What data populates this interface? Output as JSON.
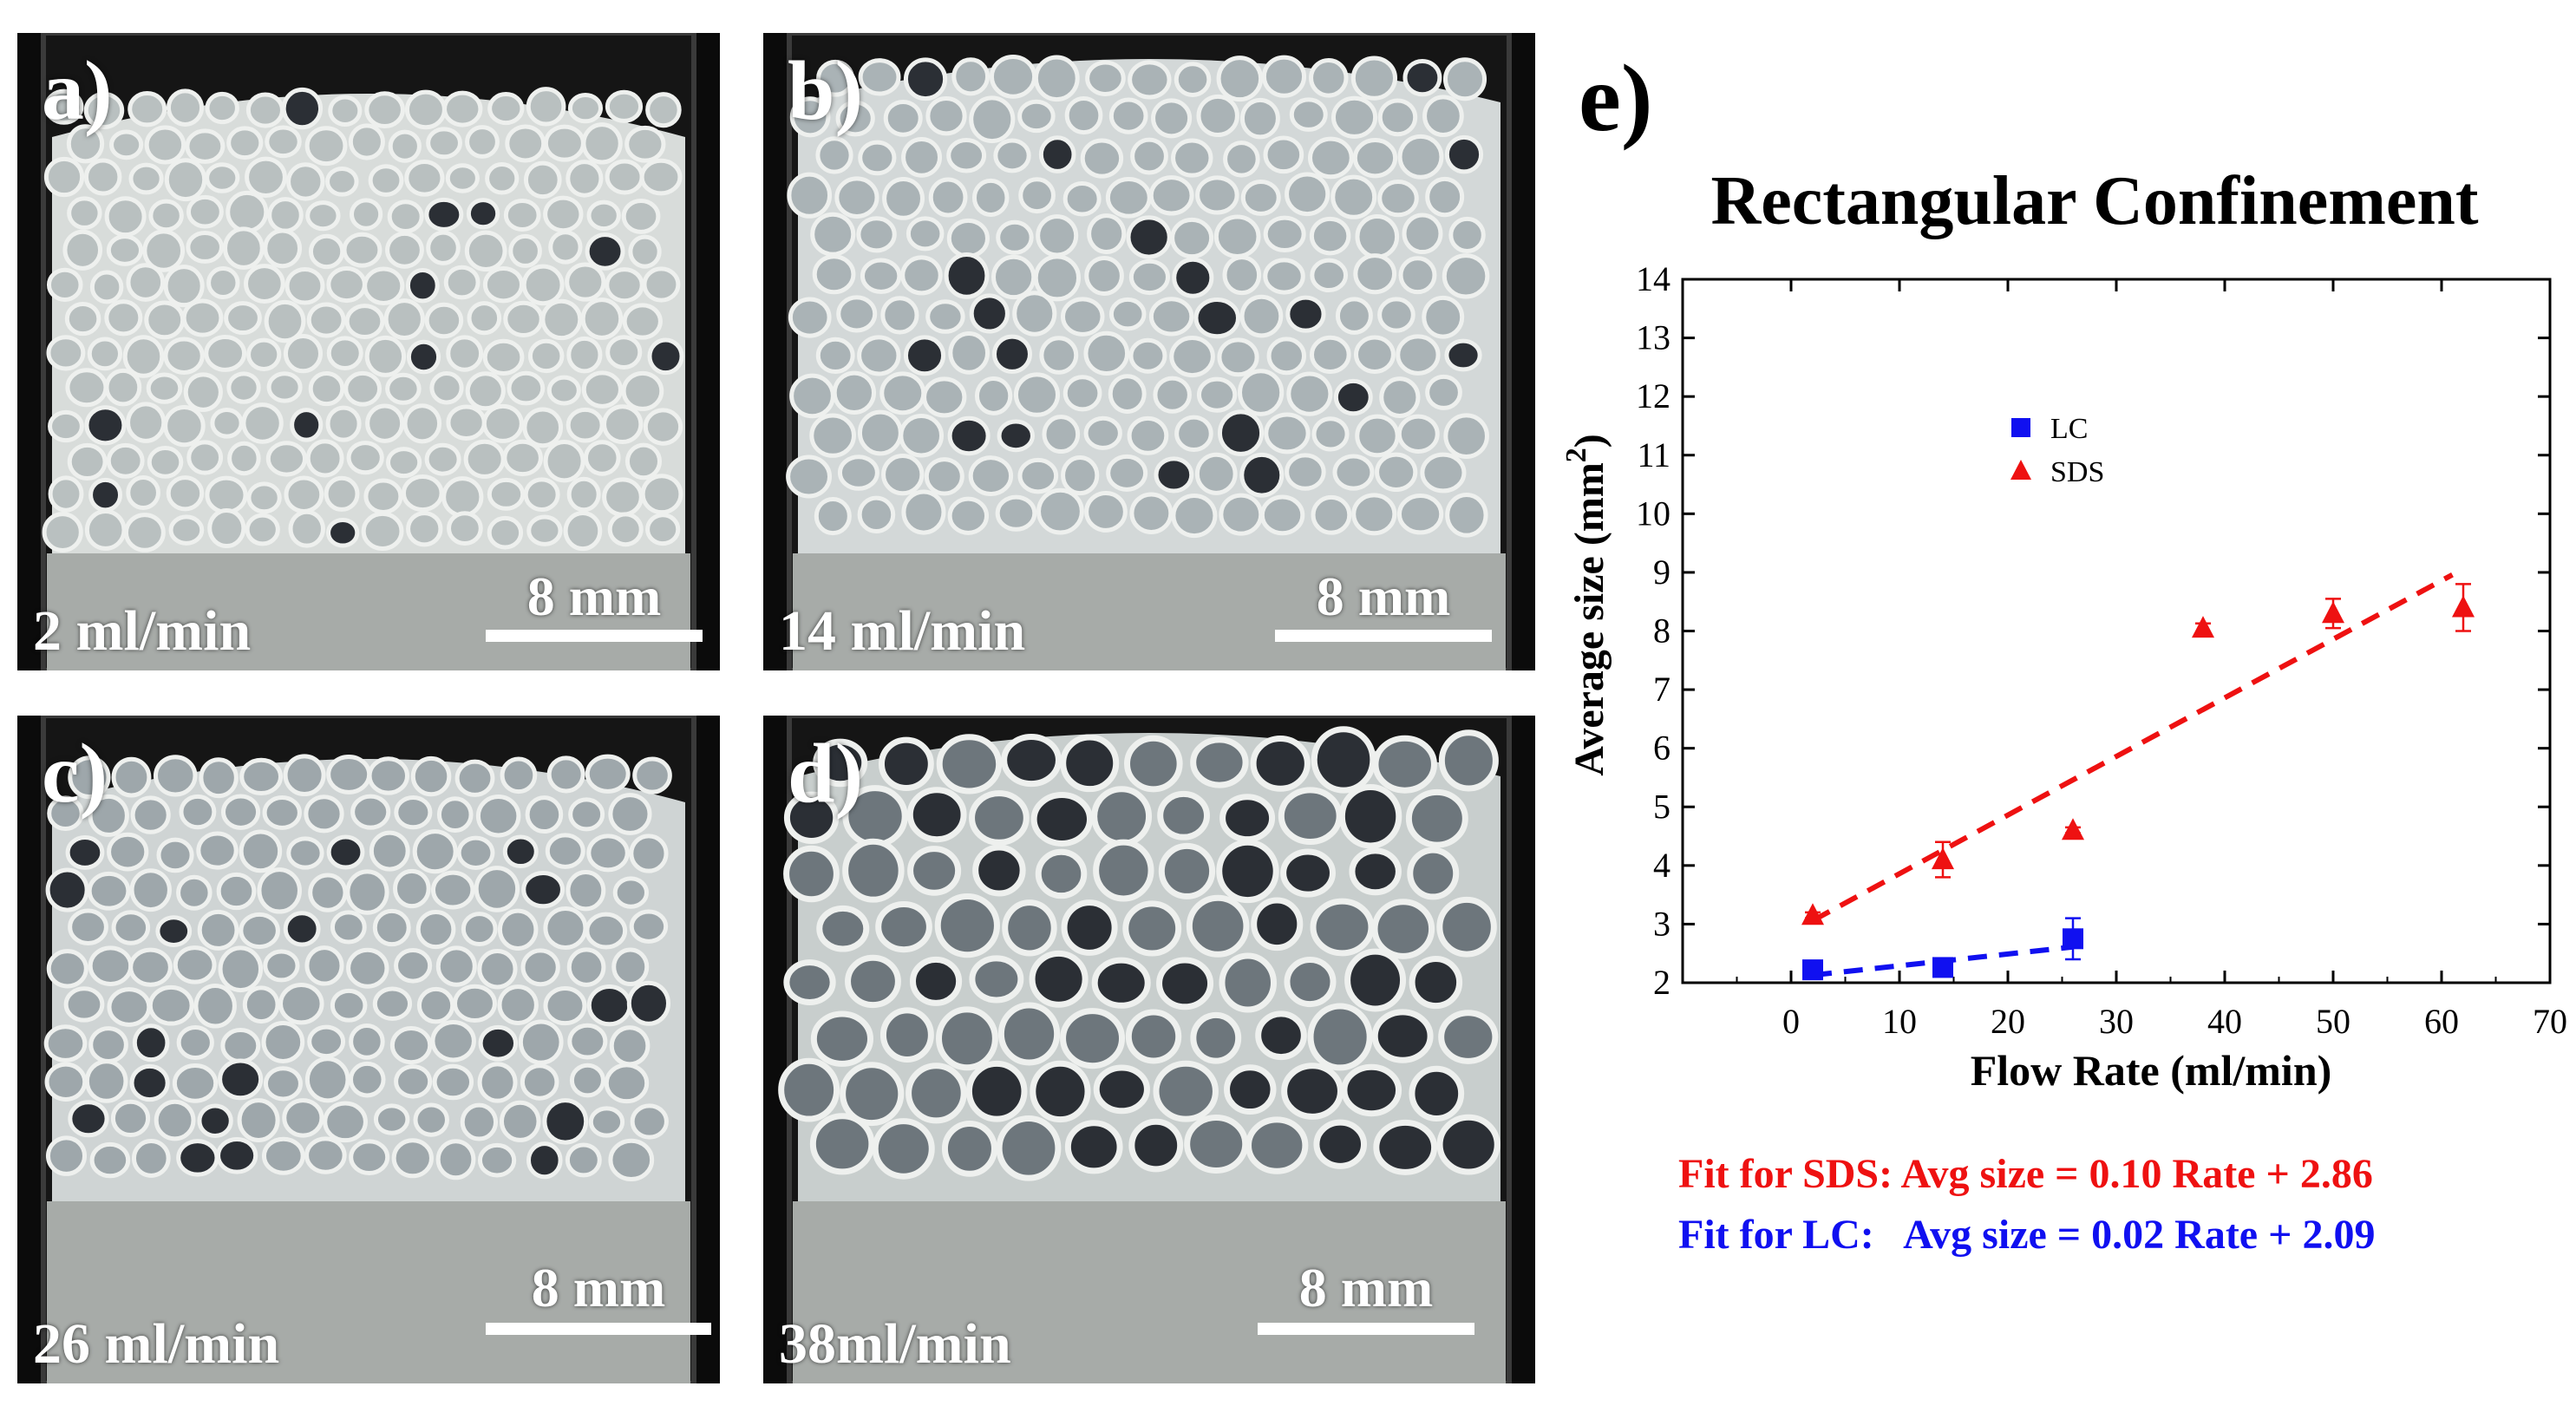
{
  "panels": [
    {
      "letter": "a)",
      "flow": "2 ml/min",
      "scale": "8 mm"
    },
    {
      "letter": "b)",
      "flow": "14 ml/min",
      "scale": "8 mm"
    },
    {
      "letter": "c)",
      "flow": "26 ml/min",
      "scale": "8 mm"
    },
    {
      "letter": "d)",
      "flow": "38ml/min",
      "scale": "8 mm"
    }
  ],
  "chart_panel_letter": "e)",
  "chart_data": {
    "type": "scatter",
    "title": "Rectangular Confinement",
    "xlabel": "Flow Rate (ml/min)",
    "ylabel": "Average size (mm",
    "ylabel_sup": "2",
    "ylabel_close": ")",
    "xlim": [
      -10,
      70
    ],
    "ylim": [
      2,
      14
    ],
    "xticks": [
      0,
      10,
      20,
      30,
      40,
      50,
      60,
      70
    ],
    "yticks": [
      2,
      3,
      4,
      5,
      6,
      7,
      8,
      9,
      10,
      11,
      12,
      13,
      14
    ],
    "legend_position": "upper-middle",
    "series": [
      {
        "name": "LC",
        "color": "#1010f0",
        "marker": "square",
        "x": [
          2,
          14,
          26
        ],
        "y": [
          2.22,
          2.26,
          2.75
        ],
        "err": [
          0.05,
          0.05,
          0.35
        ],
        "fit": {
          "slope": 0.02,
          "intercept": 2.09,
          "x_range": [
            2,
            26
          ]
        }
      },
      {
        "name": "SDS",
        "color": "#ee1111",
        "marker": "triangle",
        "x": [
          2,
          14,
          26,
          38,
          50,
          62
        ],
        "y": [
          3.15,
          4.1,
          4.6,
          8.05,
          8.3,
          8.4
        ],
        "err": [
          0.05,
          0.3,
          0.05,
          0.08,
          0.25,
          0.4
        ],
        "fit": {
          "slope": 0.1,
          "intercept": 2.86,
          "x_range": [
            2,
            61
          ]
        }
      }
    ]
  },
  "fits": {
    "sds": {
      "text": "Fit for SDS: Avg size = 0.10 Rate + 2.86",
      "color": "#ee1111"
    },
    "lc": {
      "text": "Fit for LC:   Avg size = 0.02 Rate + 2.09",
      "color": "#1010f0"
    }
  }
}
